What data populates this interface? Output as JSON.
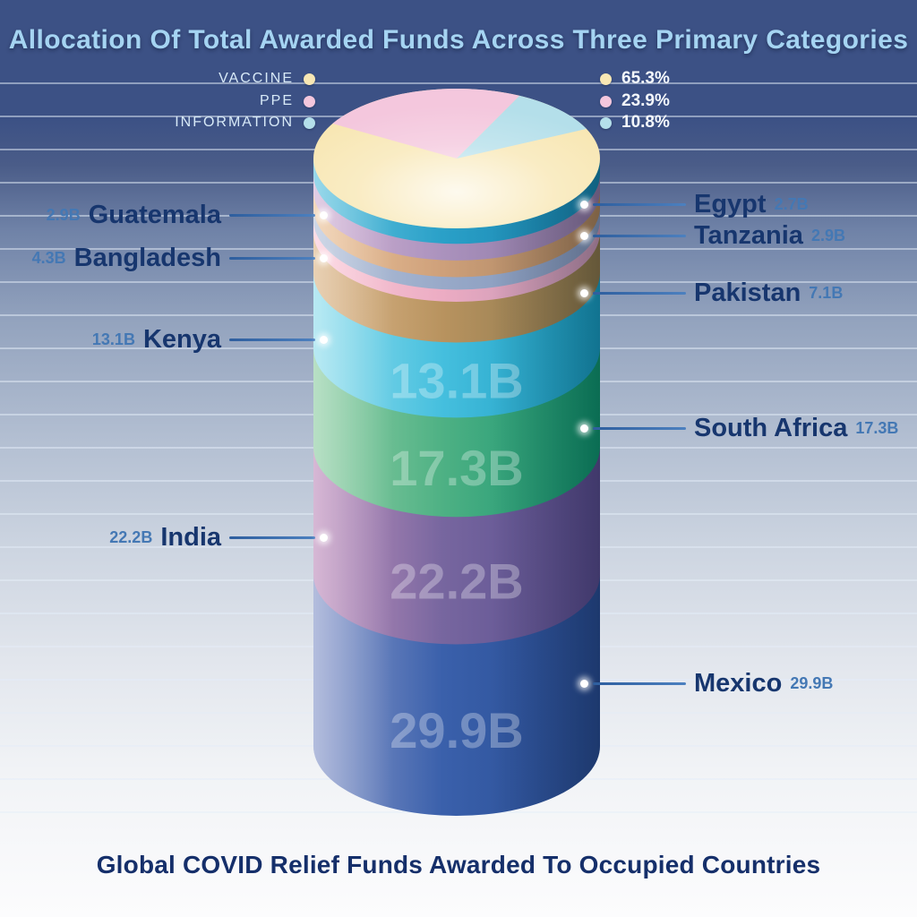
{
  "chart_data": {
    "type": "stacked-cylinder-with-pie-top",
    "title": "Global COVID Relief Funds Awarded To Occupied Countries",
    "categories_title": "Allocation Of Total Awarded Funds Across Three Primary Categories",
    "unit": "B",
    "pie": {
      "slices": [
        {
          "label": "VACCINE",
          "pct": 65.3,
          "pct_display": "65.3%",
          "color": "#F8E7B4"
        },
        {
          "label": "PPE",
          "pct": 23.9,
          "pct_display": "23.9%",
          "color": "#F4C7DD"
        },
        {
          "label": "INFORMATION",
          "pct": 10.8,
          "pct_display": "10.8%",
          "color": "#B4DFEA"
        }
      ]
    },
    "segments": [
      {
        "country": "Egypt",
        "value": 2.7,
        "display": "2.7B",
        "side": "right",
        "color": "#2AA0C8",
        "light": "#63C4DF",
        "dark": "#157FA9",
        "show_on_band": false
      },
      {
        "country": "Guatemala",
        "value": 2.9,
        "display": "2.9B",
        "side": "left",
        "color": "#AB92BD",
        "light": "#D2B4D6",
        "dark": "#86739F",
        "show_on_band": false
      },
      {
        "country": "Tanzania",
        "value": 2.9,
        "display": "2.9B",
        "side": "right",
        "color": "#CEA07A",
        "light": "#ECC49C",
        "dark": "#A37F5B",
        "show_on_band": false
      },
      {
        "country": "Bangladesh",
        "value": 4.3,
        "display": "4.3B",
        "side": "left",
        "color": "#ECACC3",
        "light": "#FACBD9",
        "dark": "#B98FAE",
        "show_on_band": false
      },
      {
        "country": "Pakistan",
        "value": 7.1,
        "display": "7.1B",
        "side": "right",
        "color": "#B8935F",
        "light": "#DDB88C",
        "dark": "#84734B",
        "show_on_band": false
      },
      {
        "country": "Kenya",
        "value": 13.1,
        "display": "13.1B",
        "side": "left",
        "color": "#45BFDE",
        "light": "#93DEED",
        "dark": "#1697BD",
        "show_on_band": true
      },
      {
        "country": "South Africa",
        "value": 17.3,
        "display": "17.3B",
        "side": "right",
        "color": "#4EB184",
        "light": "#92CFA6",
        "dark": "#0E8F6D",
        "show_on_band": true
      },
      {
        "country": "India",
        "value": 22.2,
        "display": "22.2B",
        "side": "left",
        "color": "#77669F",
        "light": "#C192BE",
        "dark": "#544A8C",
        "show_on_band": true
      },
      {
        "country": "Mexico",
        "value": 29.9,
        "display": "29.9B",
        "side": "right",
        "color": "#3A60AB",
        "light": "#8B9ACB",
        "dark": "#264A90",
        "show_on_band": true
      }
    ]
  }
}
